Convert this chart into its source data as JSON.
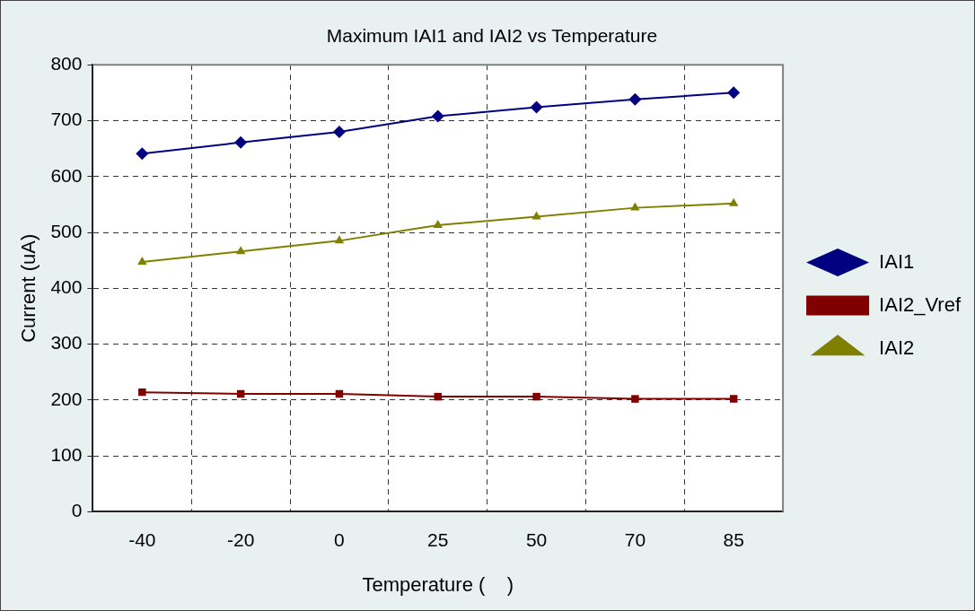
{
  "chart_data": {
    "type": "line",
    "title": "Maximum IAI1 and IAI2 vs Temperature",
    "xlabel": "Temperature (    )",
    "ylabel": "Current (uA)",
    "categories": [
      "-40",
      "-20",
      "0",
      "25",
      "50",
      "70",
      "85"
    ],
    "series": [
      {
        "name": "IAI1",
        "color": "#000080",
        "marker": "diamond",
        "values": [
          641,
          661,
          680,
          708,
          724,
          738,
          750
        ]
      },
      {
        "name": "IAI2_Vref",
        "color": "#800000",
        "marker": "square",
        "values": [
          214,
          211,
          211,
          206,
          206,
          202,
          202
        ]
      },
      {
        "name": "IAI2",
        "color": "#808000",
        "marker": "triangle",
        "values": [
          447,
          466,
          485,
          513,
          528,
          544,
          552
        ]
      }
    ],
    "ylim": [
      0,
      800
    ],
    "yticks": [
      0,
      100,
      200,
      300,
      400,
      500,
      600,
      700,
      800
    ],
    "grid": true,
    "legend": "right",
    "line_style": "solid"
  }
}
